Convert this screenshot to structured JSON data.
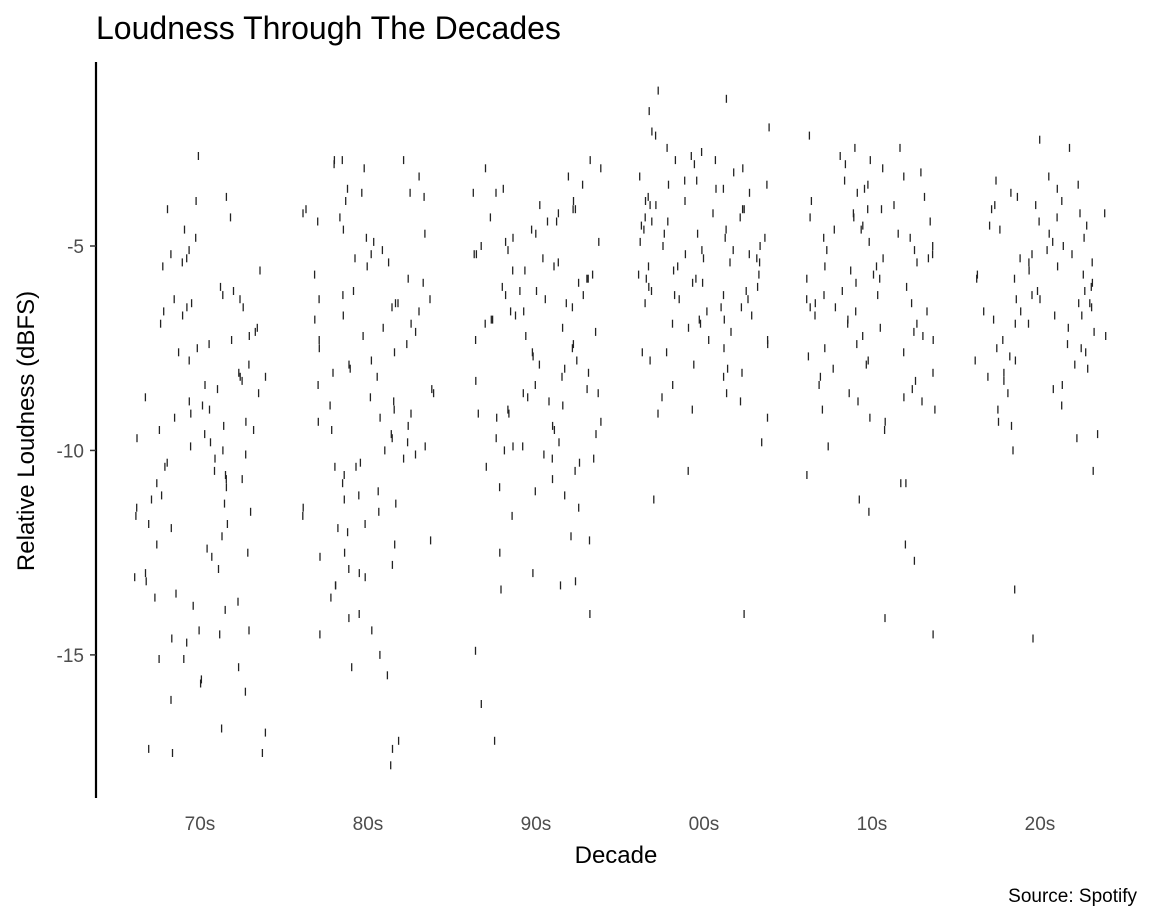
{
  "chart_data": {
    "type": "scatter",
    "title": "Loudness Through The Decades",
    "xlabel": "Decade",
    "ylabel": "Relative Loudness (dBFS)",
    "caption": "Source: Spotify",
    "categories": [
      "70s",
      "80s",
      "90s",
      "00s",
      "10s",
      "20s"
    ],
    "yticks": [
      -5,
      -10,
      -15
    ],
    "ylim": [
      -18.5,
      -0.5
    ],
    "grid": false,
    "mark": "vertical-dash, jittered horizontally",
    "series": [
      {
        "category": "70s",
        "values": [
          -6,
          -6.3,
          -8.5,
          -8.2,
          -9.4,
          -10,
          -10.8,
          -11.5,
          -11.8,
          -6.5,
          -7.3,
          -7.6,
          -8.1,
          -9.5,
          -9.8,
          -10.4,
          -11.1,
          -13.7,
          -14.4,
          -15.9,
          -17.3,
          -3.9,
          -4.3,
          -5.4,
          -5.2,
          -6.7,
          -7.1,
          -7.9,
          -8.8,
          -9.9,
          -10.7,
          -12.3,
          -13.6,
          -13.5,
          -15.1,
          -15.7,
          -17.4,
          -4.8,
          -6.1,
          -6.6,
          -6.4,
          -7.2,
          -8.3,
          -9.2,
          -9.6,
          -10.1,
          -10.9,
          -11.8,
          -12.6,
          -13.2,
          -13.9,
          -14.7,
          -3.8,
          -4.1,
          -4.6,
          -6.5,
          -7.8,
          -8.6,
          -9.1,
          -9.7,
          -10.3,
          -11.2,
          -12.1,
          -13.1,
          -14.6,
          -16.1,
          -5.1,
          -5.5,
          -6.3,
          -7.5,
          -8.4,
          -9.3,
          -10.2,
          -10.7,
          -11.4,
          -12.4,
          -13.8,
          -15.6,
          -16.8,
          -17.4,
          -2.8,
          -5.6,
          -6.9,
          -8.9,
          -9.5,
          -10.5,
          -11.6,
          -12.9,
          -14.5,
          -5.3,
          -8.2,
          -11.3,
          -11.9,
          -15.3,
          -16.9,
          -14.4,
          -15.1,
          -7.4,
          -6.2,
          -12.5,
          -9.0,
          -10.6,
          -8.7,
          -7.0,
          -13.0
        ]
      },
      {
        "category": "80s",
        "values": [
          -3,
          -3.7,
          -5.8,
          -6.2,
          -7.1,
          -8.1,
          -9.4,
          -10.4,
          -11.1,
          -11.4,
          -12.5,
          -6.4,
          -6.9,
          -7.4,
          -8.6,
          -9.2,
          -10.1,
          -10.8,
          -11.6,
          -13.3,
          -14.4,
          -15.5,
          -17.3,
          -17.7,
          -4.8,
          -5.4,
          -5.9,
          -6.5,
          -7.3,
          -8.2,
          -8.9,
          -9.6,
          -10.3,
          -11.2,
          -12.8,
          -14.1,
          -15.3,
          -2.9,
          -3.9,
          -4.4,
          -4.9,
          -6.3,
          -7.6,
          -8.7,
          -9.1,
          -9.8,
          -10.6,
          -11.8,
          -13.1,
          -14.5,
          -3.3,
          -3.6,
          -4.2,
          -5.1,
          -6.1,
          -6.8,
          -7.5,
          -8.4,
          -9.3,
          -10.2,
          -11.3,
          -12.3,
          -12.9,
          -13.6,
          -3.1,
          -3.8,
          -4.6,
          -5.7,
          -6.6,
          -7.9,
          -8.5,
          -9.5,
          -10.4,
          -11.5,
          -12.2,
          -13.3,
          -17.1,
          -2.9,
          -3.7,
          -4.3,
          -5.2,
          -6.4,
          -7.8,
          -8.8,
          -9.7,
          -11.9,
          -12.6,
          -2.9,
          -4.1,
          -6.3,
          -5.5,
          -7.2,
          -8.0,
          -9.0,
          -10.0,
          -11.0,
          -12.0,
          -13.0,
          -14.0,
          -15.0,
          -6.7,
          -9.9,
          -4.7,
          -7.0,
          -5.3
        ]
      },
      {
        "category": "90s",
        "values": [
          -5.8,
          -6.2,
          -7.3,
          -8.6,
          -9.9,
          -10.2,
          -4.9,
          -5.2,
          -5.6,
          -6.1,
          -6.8,
          -8.1,
          -9.1,
          -9.6,
          -11.1,
          -3.1,
          -3.9,
          -4.6,
          -5.4,
          -5.8,
          -6.6,
          -7.4,
          -8.8,
          -9.4,
          -10.1,
          -16.2,
          -2.9,
          -3.3,
          -3.7,
          -4.4,
          -5.1,
          -5.9,
          -6.4,
          -7.1,
          -7.9,
          -8.5,
          -9.2,
          -10.4,
          -10.9,
          -14,
          -4.1,
          -4.9,
          -5.6,
          -6.2,
          -7.5,
          -8.2,
          -8.9,
          -9.7,
          -10.3,
          -11.4,
          -12.1,
          -12.5,
          -4.3,
          -5.0,
          -6.0,
          -6.7,
          -7.7,
          -8.4,
          -9.1,
          -9.9,
          -10.7,
          -12.2,
          -17.1,
          -14.9,
          -3.6,
          -4.1,
          -4.7,
          -5.5,
          -6.3,
          -6.9,
          -7.8,
          -8.7,
          -9.5,
          -10.2,
          -11.6,
          -3.1,
          -4.4,
          -5.3,
          -6.5,
          -7.2,
          -8.3,
          -9.3,
          -10.5,
          -13.2,
          -13.4,
          -3.7,
          -4.2,
          -5.7,
          -6.6,
          -7.6,
          -8.6,
          -9.8,
          -13.0,
          -13.3,
          -4.0,
          -6.1,
          -7.0,
          -8.0,
          -9.0,
          -10.0,
          -5.2,
          -6.8,
          -3.5,
          -11.0,
          -4.8
        ]
      },
      {
        "category": "00s",
        "values": [
          -5.7,
          -6.1,
          -9.2,
          -14.0,
          -2.9,
          -3.5,
          -4.1,
          -5.1,
          -6.3,
          -7.4,
          -8.2,
          -1.4,
          -2.3,
          -3.1,
          -3.9,
          -4.6,
          -5.3,
          -6.0,
          -6.8,
          -7.6,
          -8.6,
          -11.2,
          -1.2,
          -2.1,
          -2.8,
          -3.4,
          -4.3,
          -5.0,
          -5.8,
          -6.5,
          -7.3,
          -8.1,
          -8.8,
          -10.5,
          -2.6,
          -3.2,
          -3.9,
          -4.5,
          -5.2,
          -5.9,
          -6.7,
          -7.5,
          -8.4,
          -9.1,
          -1.7,
          -3.6,
          -4.2,
          -4.8,
          -5.5,
          -6.2,
          -6.9,
          -7.8,
          -8.7,
          -2.2,
          -2.9,
          -3.7,
          -4.4,
          -5.1,
          -5.7,
          -6.4,
          -7.1,
          -8.0,
          -9.0,
          -3.3,
          -4.0,
          -4.7,
          -5.4,
          -6.1,
          -6.8,
          -7.6,
          -2.7,
          -3.5,
          -4.3,
          -4.9,
          -5.6,
          -6.3,
          -7.0,
          -7.9,
          -3.0,
          -3.8,
          -4.6,
          -5.3,
          -6.0,
          -6.6,
          -9.8,
          -4.1,
          -5.0,
          -5.8,
          -4.4,
          -5.4,
          -6.5,
          -3.4,
          -4.8,
          -5.5,
          -4.0,
          -5.2,
          -6.2,
          -5.9,
          -4.7,
          -6.9,
          -3.6,
          -7.3
        ]
      },
      {
        "category": "10s",
        "values": [
          -6.5,
          -7.0,
          -8.8,
          -10.8,
          -3.2,
          -4.3,
          -4.9,
          -5.5,
          -6.2,
          -6.9,
          -7.8,
          -8.5,
          -9.2,
          -11.2,
          -12.7,
          -14.5,
          -2.9,
          -3.7,
          -4.5,
          -5.1,
          -5.8,
          -6.6,
          -7.3,
          -8.1,
          -9.0,
          -9.5,
          -2.6,
          -3.4,
          -4.1,
          -4.8,
          -5.4,
          -6.1,
          -6.7,
          -7.5,
          -8.3,
          -9.9,
          -10.6,
          -12.3,
          -3.0,
          -3.8,
          -4.6,
          -5.2,
          -5.9,
          -6.5,
          -7.2,
          -8.0,
          -8.8,
          -10.8,
          -11.5,
          -3.3,
          -4.0,
          -4.7,
          -5.3,
          -6.0,
          -6.8,
          -7.6,
          -8.4,
          -9.3,
          -2.8,
          -3.6,
          -4.3,
          -5.0,
          -5.7,
          -6.4,
          -7.1,
          -7.9,
          -8.7,
          -3.1,
          -3.9,
          -4.4,
          -5.1,
          -5.8,
          -6.6,
          -7.4,
          -8.2,
          -2.6,
          -3.5,
          -4.1,
          -4.8,
          -5.5,
          -6.3,
          -6.9,
          -7.7,
          -14.1,
          -2.3,
          -4.2,
          -5.6,
          -6.4,
          -6.2,
          -8.6,
          -9.0,
          -5.3,
          -7.2,
          -4.6
        ]
      },
      {
        "category": "20s",
        "values": [
          -6.4,
          -6.6,
          -9.7,
          -14.6,
          -5.2,
          -5.8,
          -6.4,
          -7.1,
          -7.8,
          -8.5,
          -9.3,
          -3.6,
          -4.4,
          -5.1,
          -5.7,
          -6.3,
          -6.9,
          -7.6,
          -8.3,
          -9.0,
          -3.3,
          -4.2,
          -4.8,
          -5.5,
          -6.1,
          -6.8,
          -7.5,
          -8.2,
          -8.9,
          -3.5,
          -4.1,
          -4.7,
          -5.4,
          -6.0,
          -6.7,
          -7.3,
          -8.0,
          -9.4,
          -10.5,
          -3.9,
          -4.5,
          -5.2,
          -5.8,
          -6.5,
          -7.2,
          -7.9,
          -10.0,
          -3.4,
          -4.0,
          -4.6,
          -5.3,
          -5.9,
          -6.6,
          -7.4,
          -8.1,
          -3.7,
          -4.3,
          -4.9,
          -5.6,
          -6.2,
          -6.9,
          -7.7,
          -8.6,
          -9.6,
          -2.6,
          -3.8,
          -4.5,
          -5.0,
          -5.7,
          -6.3,
          -7.0,
          -7.8,
          -13.4,
          -2.4,
          -4.2,
          -5.4,
          -6.7,
          -7.5,
          -8.4,
          -4.0,
          -6.1
        ]
      }
    ]
  }
}
